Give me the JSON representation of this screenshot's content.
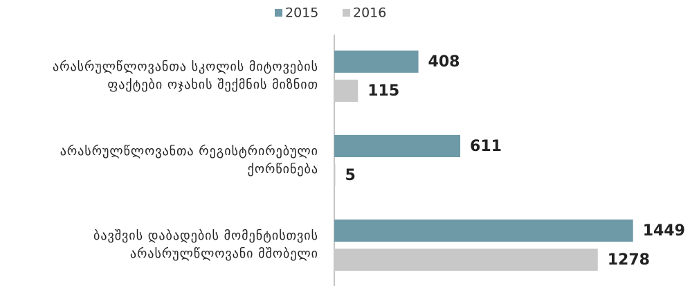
{
  "chart_data": {
    "type": "bar",
    "orientation": "horizontal",
    "categories": [
      "არასრულწლოვანთა სკოლის მიტოვების\nფაქტები ოჯახის შექმნის მიზნით",
      "არასრულწლოვანთა რეგისტრირებული\nქორწინება",
      "ბავშვის დაბადების მომენტისთვის\nარასრულწლოვანი მშობელი"
    ],
    "series": [
      {
        "name": "2015",
        "color": "#6e99a7",
        "values": [
          408,
          611,
          1449
        ]
      },
      {
        "name": "2016",
        "color": "#c8c8c9",
        "values": [
          115,
          5,
          1278
        ]
      }
    ],
    "xlim": [
      0,
      1450
    ],
    "legend": "top"
  }
}
